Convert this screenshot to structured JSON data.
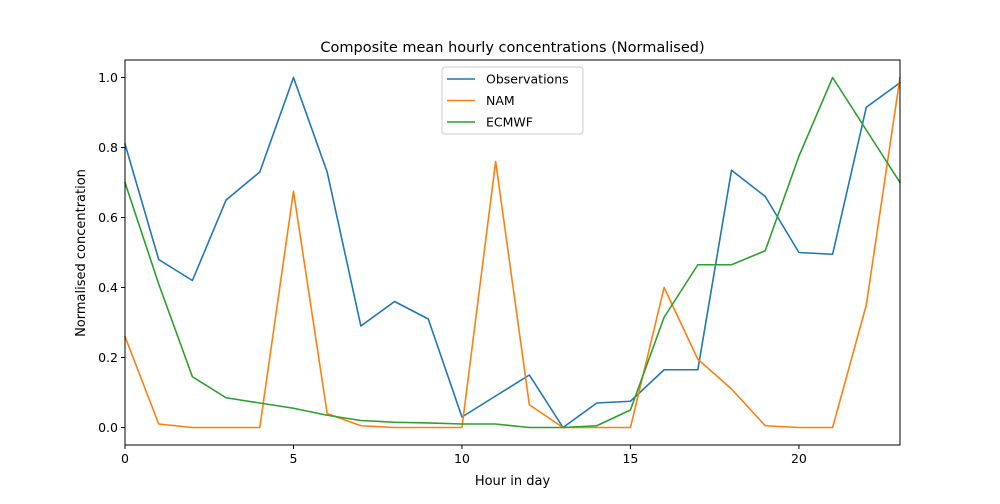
{
  "chart_data": {
    "type": "line",
    "title": "Composite mean hourly concentrations (Normalised)",
    "xlabel": "Hour in day",
    "ylabel": "Normalised concentration",
    "xlim": [
      0,
      23
    ],
    "ylim": [
      -0.05,
      1.05
    ],
    "xticks": [
      0,
      5,
      10,
      15,
      20
    ],
    "yticks": [
      0.0,
      0.2,
      0.4,
      0.6,
      0.8,
      1.0
    ],
    "grid": false,
    "legend_position": "upper center",
    "x": [
      0,
      1,
      2,
      3,
      4,
      5,
      6,
      7,
      8,
      9,
      10,
      11,
      12,
      13,
      14,
      15,
      16,
      17,
      18,
      19,
      20,
      21,
      22,
      23
    ],
    "series": [
      {
        "name": "Observations",
        "color": "#1f77b4",
        "values": [
          0.81,
          0.48,
          0.42,
          0.65,
          0.73,
          1.0,
          0.73,
          0.29,
          0.36,
          0.31,
          0.03,
          0.09,
          0.15,
          0.0,
          0.07,
          0.075,
          0.165,
          0.165,
          0.735,
          0.66,
          0.5,
          0.495,
          0.915,
          0.985
        ]
      },
      {
        "name": "NAM",
        "color": "#ff7f0e",
        "values": [
          0.26,
          0.01,
          0.0,
          0.0,
          0.0,
          0.675,
          0.04,
          0.005,
          0.0,
          0.0,
          0.0,
          0.76,
          0.065,
          0.0,
          0.0,
          0.0,
          0.4,
          0.195,
          0.11,
          0.005,
          0.0,
          0.0,
          0.35,
          1.0
        ]
      },
      {
        "name": "ECMWF",
        "color": "#2ca02c",
        "values": [
          0.7,
          0.41,
          0.145,
          0.085,
          0.07,
          0.055,
          0.035,
          0.02,
          0.015,
          0.013,
          0.01,
          0.01,
          0.0,
          0.0,
          0.005,
          0.05,
          0.315,
          0.465,
          0.465,
          0.505,
          0.775,
          1.0,
          0.85,
          0.7
        ]
      }
    ]
  }
}
